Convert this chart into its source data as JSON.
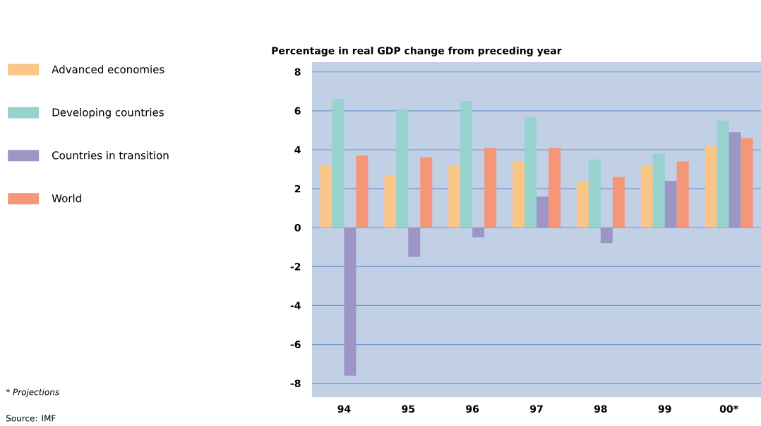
{
  "chart_data": {
    "type": "bar",
    "title": "Percentage in real GDP change from preceding year",
    "categories": [
      "94",
      "95",
      "96",
      "97",
      "98",
      "99",
      "00*"
    ],
    "series": [
      {
        "name": "Advanced economies",
        "color": "#fbc588",
        "values": [
          3.2,
          2.7,
          3.2,
          3.4,
          2.4,
          3.2,
          4.2
        ]
      },
      {
        "name": "Developing countries",
        "color": "#96d3cf",
        "values": [
          6.6,
          6.1,
          6.5,
          5.7,
          3.5,
          3.8,
          5.5
        ]
      },
      {
        "name": "Countries in transition",
        "color": "#9c95c6",
        "values": [
          -7.6,
          -1.5,
          -0.5,
          1.6,
          -0.8,
          2.4,
          4.9
        ]
      },
      {
        "name": "World",
        "color": "#f59679",
        "values": [
          3.7,
          3.6,
          4.1,
          4.1,
          2.6,
          3.4,
          4.6
        ]
      }
    ],
    "ylim": [
      -8.7,
      8.5
    ],
    "yticks": [
      -8,
      -6,
      -4,
      -2,
      0,
      2,
      4,
      6,
      8
    ],
    "grid": "y",
    "legend": "left",
    "annotations": [
      "* Projections",
      "Source: IMF"
    ]
  }
}
